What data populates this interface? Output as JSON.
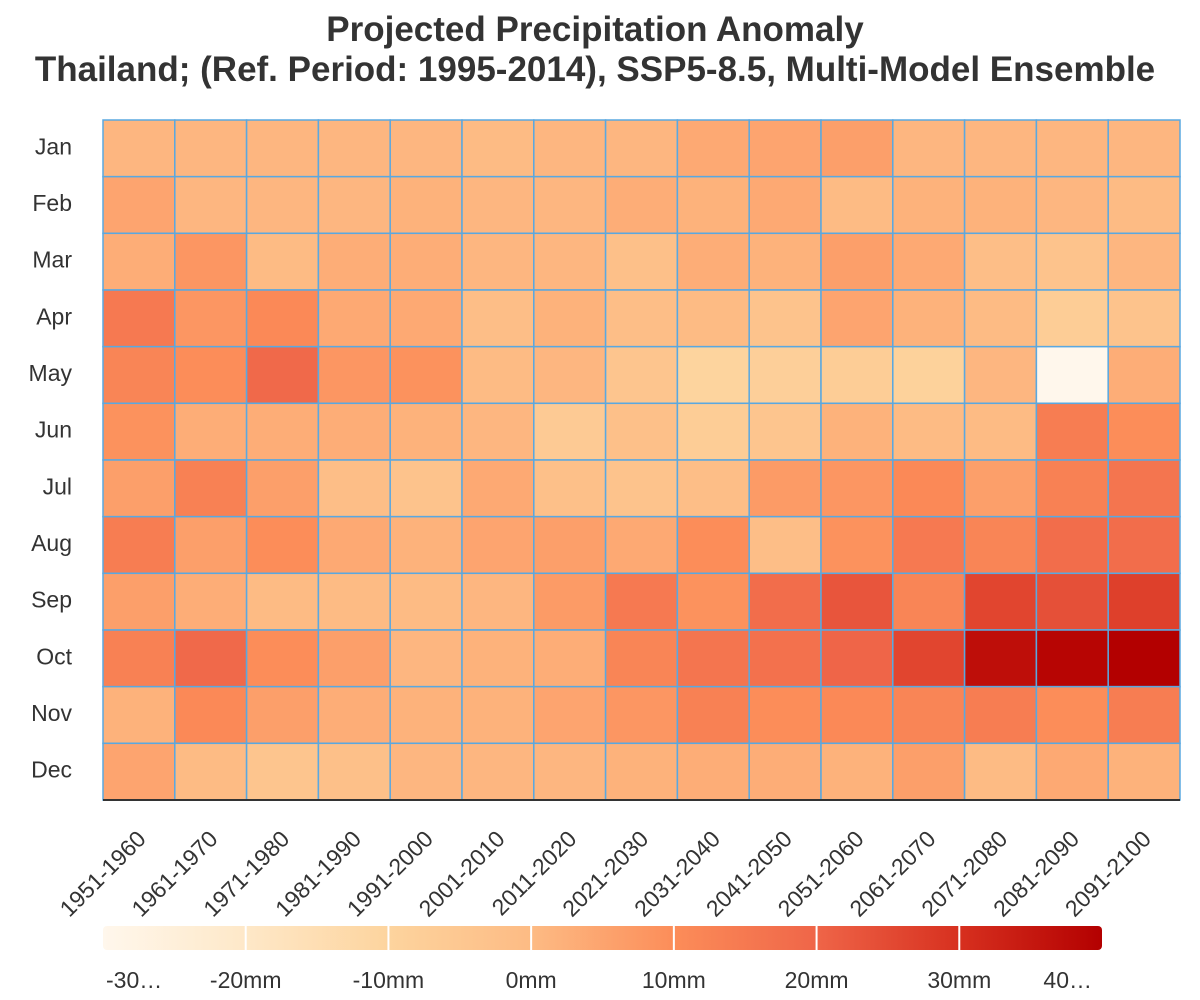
{
  "chart_data": {
    "type": "heatmap",
    "title": "Projected Precipitation Anomaly",
    "subtitle": "Thailand; (Ref. Period: 1995-2014), SSP5-8.5, Multi-Model Ensemble",
    "x_categories": [
      "1951-1960",
      "1961-1970",
      "1971-1980",
      "1981-1990",
      "1991-2000",
      "2001-2010",
      "2011-2020",
      "2021-2030",
      "2031-2040",
      "2041-2050",
      "2051-2060",
      "2061-2070",
      "2071-2080",
      "2081-2090",
      "2091-2100"
    ],
    "y_categories": [
      "Jan",
      "Feb",
      "Mar",
      "Apr",
      "May",
      "Jun",
      "Jul",
      "Aug",
      "Sep",
      "Oct",
      "Nov",
      "Dec"
    ],
    "values": [
      [
        1,
        1,
        1,
        1,
        1,
        0,
        1,
        1,
        4,
        5,
        6,
        1,
        1,
        1,
        1
      ],
      [
        5,
        1,
        1,
        1,
        2,
        1,
        1,
        3,
        2,
        4,
        0,
        2,
        2,
        1,
        0
      ],
      [
        3,
        8,
        0,
        3,
        3,
        1,
        1,
        -2,
        3,
        2,
        6,
        4,
        -1,
        -3,
        1
      ],
      [
        15,
        8,
        11,
        4,
        4,
        -1,
        2,
        -1,
        0,
        -3,
        5,
        2,
        0,
        -7,
        -3
      ],
      [
        12,
        10,
        19,
        8,
        9,
        0,
        1,
        -4,
        -10,
        -8,
        -7,
        -9,
        1,
        -30,
        3
      ],
      [
        9,
        3,
        3,
        3,
        2,
        1,
        -6,
        -2,
        -7,
        -4,
        2,
        0,
        0,
        14,
        10
      ],
      [
        6,
        13,
        6,
        -1,
        -3,
        4,
        -2,
        -3,
        -1,
        7,
        8,
        11,
        6,
        13,
        16
      ],
      [
        14,
        6,
        10,
        4,
        2,
        5,
        6,
        4,
        10,
        -1,
        9,
        15,
        12,
        18,
        18
      ],
      [
        6,
        3,
        0,
        0,
        0,
        1,
        7,
        15,
        9,
        18,
        23,
        12,
        26,
        24,
        27
      ],
      [
        13,
        19,
        10,
        6,
        1,
        2,
        3,
        12,
        16,
        17,
        20,
        26,
        37,
        39,
        40
      ],
      [
        2,
        11,
        6,
        3,
        2,
        2,
        5,
        8,
        13,
        10,
        11,
        12,
        14,
        10,
        14
      ],
      [
        5,
        0,
        -4,
        -2,
        1,
        1,
        1,
        2,
        3,
        3,
        2,
        6,
        0,
        4,
        2
      ]
    ],
    "colorbar": {
      "ticks": [
        "-30…",
        "-20mm",
        "-10mm",
        "0mm",
        "10mm",
        "20mm",
        "30mm",
        "40…"
      ],
      "range": [
        -30,
        40
      ],
      "colors": [
        "#fff7ec",
        "#fee8c8",
        "#fdd49e",
        "#fdbb84",
        "#fc8d59",
        "#ef6548",
        "#d7301f",
        "#b30000"
      ],
      "orientation": "horizontal",
      "placement": "bottom"
    },
    "grid": true,
    "grid_color": "#5aa8e0",
    "text_color": "#333333"
  }
}
